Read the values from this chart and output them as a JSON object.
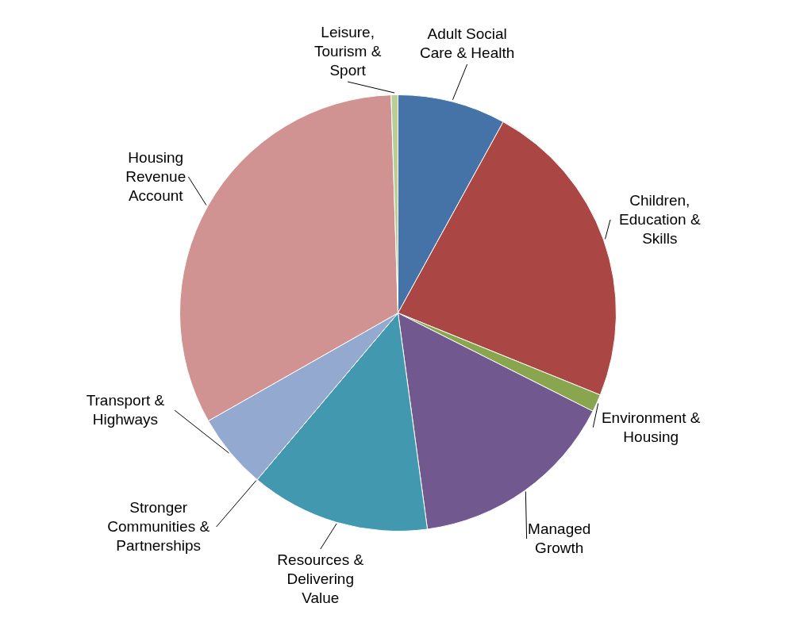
{
  "chart_data": {
    "type": "pie",
    "categories": [
      "Adult Social Care & Health",
      "Children, Education & Skills",
      "Environment & Housing",
      "Managed Growth",
      "Resources & Delivering Value",
      "Stronger Communities & Partnerships",
      "Transport & Highways",
      "Housing Revenue Account",
      "Leisure, Tourism & Sport"
    ],
    "values": [
      8.0,
      23.1,
      1.3,
      15.4,
      13.3,
      null,
      5.6,
      32.7,
      0.5
    ],
    "colors": [
      "#4572a7",
      "#aa4643",
      "#89a54e",
      "#71588f",
      "#4198af",
      "#db843d",
      "#93a9cf",
      "#d19392",
      "#b9cd96"
    ]
  }
}
